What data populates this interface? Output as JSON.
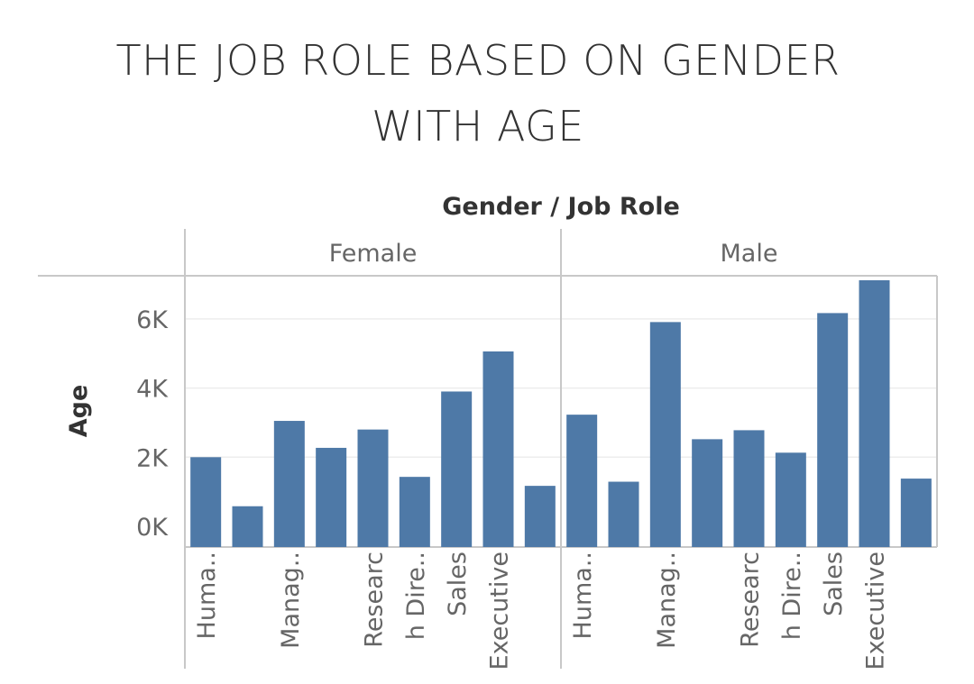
{
  "title_lines": [
    "THE JOB ROLE BASED ON GENDER",
    "WITH AGE"
  ],
  "chart_data": {
    "type": "bar",
    "title": "THE JOB ROLE BASED ON GENDER WITH AGE",
    "column_header": "Gender / Job Role",
    "ylabel": "Age",
    "ylim": [
      -600,
      7250
    ],
    "yticks": [
      0,
      2000,
      4000,
      6000
    ],
    "ytick_labels": [
      "0K",
      "2K",
      "4K",
      "6K"
    ],
    "bar_color": "#4e79a7",
    "category_labels": [
      "Huma..",
      "",
      "Manag..",
      "",
      "Researc",
      "h Dire..",
      "Sales",
      "Executive",
      ""
    ],
    "panels": [
      {
        "name": "Female",
        "values": [
          2000,
          580,
          3050,
          2270,
          2800,
          1430,
          3900,
          5060,
          1170
        ]
      },
      {
        "name": "Male",
        "values": [
          3230,
          1290,
          5910,
          2520,
          2780,
          2130,
          6170,
          7120,
          1380
        ]
      }
    ]
  }
}
